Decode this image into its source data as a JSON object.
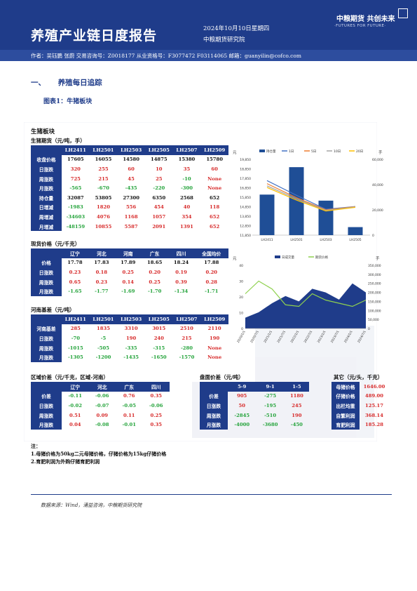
{
  "header": {
    "title": "养殖产业链日度报告",
    "date": "2024年10月10日星期四",
    "institute": "中粮期货研究院",
    "brand_cn": "中粮期货 共创未来",
    "brand_en": "·FUTURES FOR FUTURE·",
    "authors": "作者：吴钰鹏 张蔚 交易咨询号：Z0018177 从业资格号：F3077472 F03114065 邮箱：guanyilin@cofco.com"
  },
  "section": {
    "num": "一、",
    "title": "养殖每日追踪"
  },
  "figure": {
    "label": "图表1：牛猪板块"
  },
  "card_title": "生猪板块",
  "futures": {
    "caption": "生猪期货（元/吨，手）",
    "headers": [
      "",
      "LH2411",
      "LH2501",
      "LH2503",
      "LH2505",
      "LH2507",
      "LH2509"
    ],
    "rows": [
      {
        "label": "收盘价格",
        "cells": [
          "17605",
          "16055",
          "14580",
          "14875",
          "15380",
          "15780"
        ],
        "color": "dark"
      },
      {
        "label": "日涨跌",
        "cells": [
          "320",
          "255",
          "60",
          "10",
          "35",
          "60"
        ],
        "color": "red"
      },
      {
        "label": "周涨跌",
        "cells": [
          "725",
          "215",
          "45",
          "25",
          "-10",
          "None"
        ],
        "color": "red"
      },
      {
        "label": "月涨跌",
        "cells": [
          "-565",
          "-670",
          "-435",
          "-220",
          "-300",
          "None"
        ],
        "color": "green"
      },
      {
        "label": "持仓量",
        "cells": [
          "32087",
          "53805",
          "27300",
          "6350",
          "2568",
          "652"
        ],
        "color": "dark"
      },
      {
        "label": "日增减",
        "cells": [
          "-1983",
          "1820",
          "556",
          "454",
          "40",
          "118"
        ],
        "color": "red"
      },
      {
        "label": "周增减",
        "cells": [
          "-34603",
          "4076",
          "1168",
          "1057",
          "354",
          "652"
        ],
        "color": "red"
      },
      {
        "label": "月增减",
        "cells": [
          "-48159",
          "10855",
          "5587",
          "2091",
          "1391",
          "652"
        ],
        "color": "red"
      }
    ]
  },
  "spot": {
    "caption": "现货价格（元/千克）",
    "headers": [
      "",
      "辽宁",
      "河北",
      "河南",
      "广东",
      "四川",
      "全国均价"
    ],
    "rows": [
      {
        "label": "价格",
        "cells": [
          "17.78",
          "17.83",
          "17.89",
          "18.65",
          "18.24",
          "17.88"
        ],
        "color": "dark"
      },
      {
        "label": "日涨跌",
        "cells": [
          "0.23",
          "0.18",
          "0.25",
          "0.20",
          "0.19",
          "0.20"
        ],
        "color": "red"
      },
      {
        "label": "周涨跌",
        "cells": [
          "0.65",
          "0.23",
          "0.14",
          "0.25",
          "0.39",
          "0.28"
        ],
        "color": "red"
      },
      {
        "label": "月涨跌",
        "cells": [
          "-1.65",
          "-1.77",
          "-1.69",
          "-1.70",
          "-1.34",
          "-1.71"
        ],
        "color": "green"
      }
    ]
  },
  "basis": {
    "caption": "河南基差（元/吨）",
    "headers": [
      "",
      "LH2411",
      "LH2501",
      "LH2503",
      "LH2505",
      "LH2507",
      "LH2509"
    ],
    "rows": [
      {
        "label": "河南基差",
        "cells": [
          "285",
          "1835",
          "3310",
          "3015",
          "2510",
          "2110"
        ],
        "color": "red"
      },
      {
        "label": "日涨跌",
        "cells": [
          "-70",
          "-5",
          "190",
          "240",
          "215",
          "190"
        ],
        "color": "red"
      },
      {
        "label": "周涨跌",
        "cells": [
          "-1015",
          "-505",
          "-335",
          "-315",
          "-280",
          "None"
        ],
        "color": "green"
      },
      {
        "label": "月涨跌",
        "cells": [
          "-1305",
          "-1200",
          "-1435",
          "-1650",
          "-1570",
          "None"
        ],
        "color": "green"
      }
    ]
  },
  "regional": {
    "caption": "区域价差（元/千克，区域-河南）",
    "headers": [
      "",
      "辽宁",
      "河北",
      "广东",
      "四川"
    ],
    "rows": [
      {
        "label": "价差",
        "cells": [
          "-0.11",
          "-0.06",
          "0.76",
          "0.35"
        ],
        "color": "red"
      },
      {
        "label": "日涨跌",
        "cells": [
          "-0.02",
          "-0.07",
          "-0.05",
          "-0.06"
        ],
        "color": "green"
      },
      {
        "label": "周涨跌",
        "cells": [
          "0.51",
          "0.09",
          "0.11",
          "0.25"
        ],
        "color": "red"
      },
      {
        "label": "月涨跌",
        "cells": [
          "0.04",
          "-0.08",
          "-0.01",
          "0.35"
        ],
        "color": "red"
      }
    ]
  },
  "spread": {
    "caption": "盘面价差（元/吨）",
    "headers": [
      "",
      "5-9",
      "9-1",
      "1-5"
    ],
    "rows": [
      {
        "label": "价差",
        "cells": [
          "905",
          "-275",
          "1180"
        ],
        "color": "red"
      },
      {
        "label": "日涨跌",
        "cells": [
          "50",
          "-195",
          "245"
        ],
        "color": "red"
      },
      {
        "label": "周涨跌",
        "cells": [
          "-2845",
          "-510",
          "190"
        ],
        "color": "red"
      },
      {
        "label": "月涨跌",
        "cells": [
          "-4000",
          "-3680",
          "-450"
        ],
        "color": "green"
      }
    ]
  },
  "other": {
    "caption": "其它（元/头，千克）",
    "rows": [
      {
        "label": "母猪价格",
        "value": "1646.00"
      },
      {
        "label": "仔猪价格",
        "value": "489.00"
      },
      {
        "label": "出栏均重",
        "value": "125.17"
      },
      {
        "label": "自繁利润",
        "value": "368.14"
      },
      {
        "label": "育肥利润",
        "value": "185.28"
      }
    ]
  },
  "notes": {
    "title": "注：",
    "items": [
      "1.母猪价格为50kg二元母猪价格，仔猪价格为15kg仔猪价格",
      "2.育肥利润为外购仔猪育肥利润"
    ]
  },
  "source": "数据来源：Wind，涌益咨询，中粮期货研究院",
  "colors": {
    "navy": "#1f3c8a",
    "red": "#d72a2a",
    "green": "#23a33a"
  },
  "chart_data": [
    {
      "type": "bar",
      "categories": [
        "LH2411",
        "LH2501",
        "LH2503",
        "LH2505"
      ],
      "series": [
        {
          "name": "持仓量",
          "type": "bar",
          "axis": "right",
          "values": [
            32087,
            53805,
            27300,
            6350
          ]
        },
        {
          "name": "1日",
          "type": "line",
          "axis": "left",
          "values": [
            17605,
            16055,
            14580,
            14875
          ]
        },
        {
          "name": "5日",
          "type": "line",
          "axis": "left",
          "values": [
            17285,
            15800,
            14520,
            14865
          ]
        },
        {
          "name": "10日",
          "type": "line",
          "axis": "left",
          "values": [
            17050,
            15680,
            14460,
            14830
          ]
        },
        {
          "name": "20日",
          "type": "line",
          "axis": "left",
          "values": [
            16880,
            15550,
            14400,
            14780
          ]
        }
      ],
      "ylim_left": [
        11850,
        19850
      ],
      "yticks_left": [
        "11,850",
        "12,850",
        "13,850",
        "14,850",
        "15,850",
        "16,850",
        "17,850",
        "18,850",
        "19,850"
      ],
      "ylim_right": [
        0,
        60000
      ],
      "yticks_right": [
        "0",
        "20,000",
        "40,000",
        "60,000"
      ],
      "ylabel_left": "元",
      "ylabel_right": "手"
    },
    {
      "type": "area",
      "x": [
        "2020/1/1",
        "2020/7/1",
        "2021/1/1",
        "2021/7/1",
        "2022/1/1",
        "2022/7/1",
        "2023/1/1",
        "2023/7/1",
        "2024/1/1",
        "2024/7/1"
      ],
      "series": [
        {
          "name": "日成交量",
          "type": "area",
          "axis": "right",
          "values": [
            60000,
            90000,
            140000,
            180000,
            150000,
            220000,
            200000,
            160000,
            250000,
            200000
          ]
        },
        {
          "name": "期货价格",
          "type": "line",
          "axis": "left",
          "values": [
            22,
            30,
            25,
            15,
            14,
            22,
            18,
            16,
            14,
            18
          ]
        }
      ],
      "ylim_left": [
        0,
        40
      ],
      "yticks_left": [
        "0",
        "10",
        "20",
        "30",
        "40"
      ],
      "ylim_right": [
        0,
        350000
      ],
      "yticks_right": [
        "0",
        "50,000",
        "100,000",
        "150,000",
        "200,000",
        "250,000",
        "300,000",
        "350,000"
      ],
      "ylabel_left": "元",
      "ylabel_right": "手"
    }
  ]
}
